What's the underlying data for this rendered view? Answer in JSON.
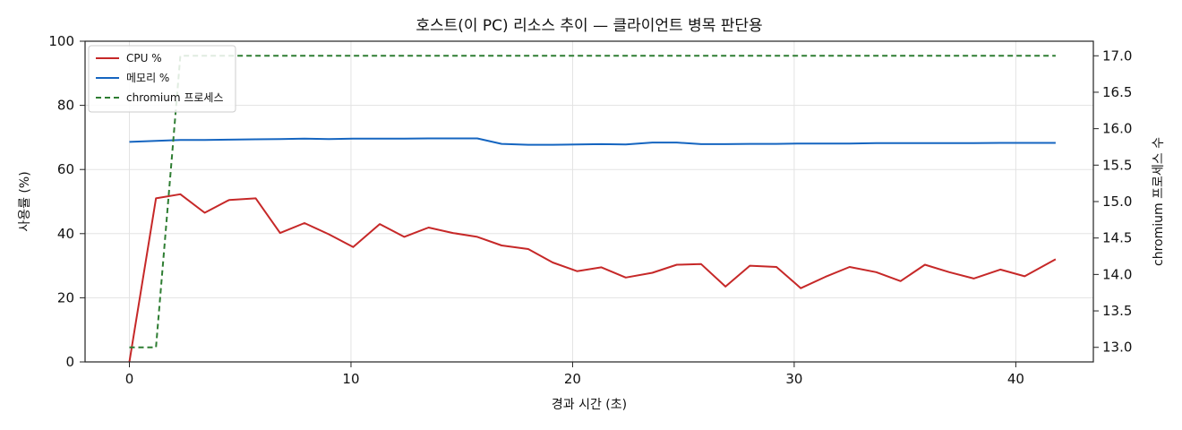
{
  "chart_data": {
    "type": "line",
    "title": "호스트(이 PC) 리소스 추이 — 클라이언트 병목 판단용",
    "xlabel": "경과 시간 (초)",
    "ylabel": "사용률 (%)",
    "y2label": "chromium 프로세스 수",
    "xlim": [
      -2,
      43.5
    ],
    "ylim": [
      0,
      100
    ],
    "y2lim": [
      12.8,
      17.2
    ],
    "xticks": [
      "0",
      "10",
      "20",
      "30",
      "40"
    ],
    "yticks": [
      "0",
      "20",
      "40",
      "60",
      "80",
      "100"
    ],
    "y2ticks": [
      "13.0",
      "13.5",
      "14.0",
      "14.5",
      "15.0",
      "15.5",
      "16.0",
      "16.5",
      "17.0"
    ],
    "grid": true,
    "legend_position": "top-left",
    "series": [
      {
        "name": "CPU %",
        "axis": "left",
        "color": "#c62828",
        "dash": "solid",
        "x": [
          0,
          1.2,
          2.3,
          3.4,
          4.5,
          5.7,
          6.8,
          7.9,
          9.0,
          10.1,
          11.3,
          12.4,
          13.5,
          14.6,
          15.7,
          16.8,
          18.0,
          19.1,
          20.2,
          21.3,
          22.4,
          23.6,
          24.7,
          25.8,
          26.9,
          28.0,
          29.2,
          30.3,
          31.4,
          32.5,
          33.7,
          34.8,
          35.9,
          37.0,
          38.1,
          39.3,
          40.4,
          41.8
        ],
        "values": [
          0,
          51,
          52.3,
          46.5,
          50.5,
          51,
          40.2,
          43.3,
          39.8,
          35.8,
          43,
          39,
          41.9,
          40.2,
          39,
          36.3,
          35.2,
          31,
          28.3,
          29.5,
          26.3,
          27.8,
          30.3,
          30.5,
          23.5,
          30,
          29.6,
          23,
          26.5,
          29.6,
          28,
          25.2,
          30.3,
          28,
          26,
          28.8,
          26.7,
          32
        ]
      },
      {
        "name": "메모리 %",
        "axis": "left",
        "color": "#1565c0",
        "dash": "solid",
        "x": [
          0,
          1.2,
          2.3,
          3.4,
          4.5,
          5.7,
          6.8,
          7.9,
          9.0,
          10.1,
          11.3,
          12.4,
          13.5,
          14.6,
          15.7,
          16.8,
          18.0,
          19.1,
          20.2,
          21.3,
          22.4,
          23.6,
          24.7,
          25.8,
          26.9,
          28.0,
          29.2,
          30.3,
          31.4,
          32.5,
          33.7,
          34.8,
          35.9,
          37.0,
          38.1,
          39.3,
          40.4,
          41.8
        ],
        "values": [
          68.6,
          68.9,
          69.2,
          69.2,
          69.3,
          69.4,
          69.5,
          69.6,
          69.5,
          69.6,
          69.6,
          69.6,
          69.7,
          69.7,
          69.7,
          68,
          67.7,
          67.7,
          67.8,
          67.9,
          67.8,
          68.4,
          68.4,
          67.9,
          67.9,
          68,
          68,
          68.1,
          68.1,
          68.1,
          68.2,
          68.2,
          68.2,
          68.2,
          68.2,
          68.3,
          68.3,
          68.3
        ]
      },
      {
        "name": "chromium 프로세스",
        "axis": "right",
        "color": "#2e7d32",
        "dash": "dashed",
        "x": [
          0,
          1.2,
          2.3,
          41.8
        ],
        "values": [
          13,
          13,
          17,
          17
        ]
      }
    ]
  }
}
